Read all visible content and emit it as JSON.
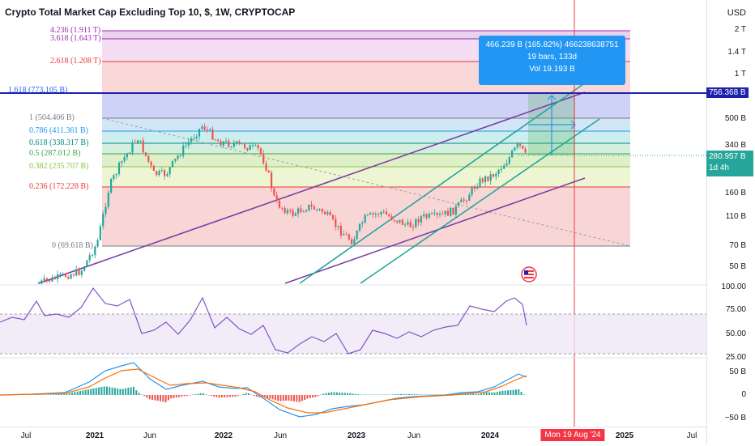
{
  "header": {
    "title": "Crypto Total Market Cap Excluding Top 10, $, 1W, CRYPTOCAP"
  },
  "price_axis": {
    "currency": "USD",
    "labels": [
      "2 T",
      "1.4 T",
      "1 T",
      "500 B",
      "340 B",
      "160 B",
      "110 B",
      "70 B",
      "50 B"
    ],
    "last_price": "280.957 B",
    "countdown": "1d 4h",
    "line_price": "756.368 B"
  },
  "rsi_axis": {
    "labels": [
      "100.00",
      "75.00",
      "50.00",
      "25.00"
    ]
  },
  "macd_axis": {
    "labels": [
      "50 B",
      "0",
      "−50 B"
    ]
  },
  "time_axis": {
    "labels": [
      "Jul",
      "2021",
      "Jun",
      "2022",
      "Jun",
      "2023",
      "Jun",
      "2024",
      "2025",
      "Jul"
    ],
    "crosshair_date": "Mon 19 Aug '24"
  },
  "fib_levels": [
    {
      "label": "4.236 (1.911 T)",
      "color": "#9c27b0"
    },
    {
      "label": "3.618 (1.643 T)",
      "color": "#9c27b0"
    },
    {
      "label": "2.618 (1.208 T)",
      "color": "#e53935"
    },
    {
      "label": "1.618 (773.105 B)",
      "color": "#2962ff"
    },
    {
      "label": "1 (504.406 B)",
      "color": "#787b86"
    },
    {
      "label": "0.786 (411.361 B)",
      "color": "#2196f3"
    },
    {
      "label": "0.618 (338.317 B)",
      "color": "#00897b"
    },
    {
      "label": "0.5 (287.012 B)",
      "color": "#43a047"
    },
    {
      "label": "0.382 (235.707 B)",
      "color": "#8bc34a"
    },
    {
      "label": "0.236 (172.228 B)",
      "color": "#e53935"
    },
    {
      "label": "0 (69.618 B)",
      "color": "#787b86"
    }
  ],
  "measure_tooltip": {
    "line1": "466.239 B (165.82%) 466238638751",
    "line2": "19 bars, 133d",
    "line3": "Vol 19.193 B"
  },
  "colors": {
    "bull": "#26a69a",
    "bear": "#ef5350",
    "rsi": "#7e57c2",
    "macd": "#2196f3",
    "signal": "#ff6d00",
    "horizontal": "#1e22aa",
    "crosshair": "#f23645"
  }
}
